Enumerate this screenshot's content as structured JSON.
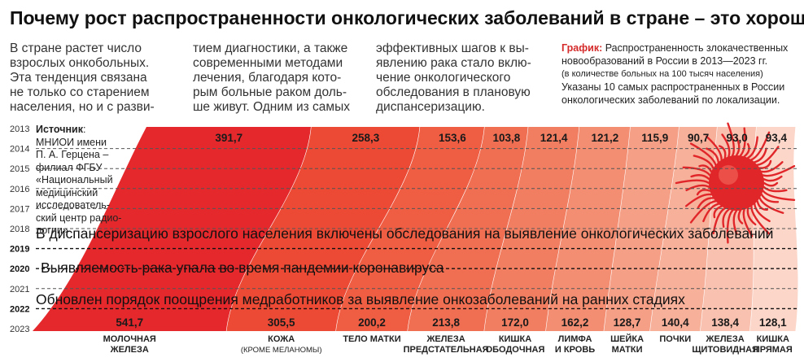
{
  "title": "Почему рост распространенности онкологических заболеваний в стране – это хорошо",
  "text_columns": [
    [
      "В стране растет число",
      "взрослых онкобольных.",
      "Эта тенденция связана",
      "не только со старением",
      "населения, но и с разви-"
    ],
    [
      "тием диагностики, а также",
      "современными методами",
      "лечения, благодаря кото-",
      "рым больные раком доль-",
      "ше живут. Одним из самых"
    ],
    [
      "эффективных шагов к вы-",
      "явлению рака стало вклю-",
      "чение онкологического",
      "обследования в плановую",
      "диспансеризацию."
    ]
  ],
  "graph_note": {
    "lead": "График:",
    "line1": " Распространенность злокачественных",
    "line2": "новообразований в России в 2013—2023 гг.",
    "line3": "(в количестве больных на 100 тысяч населения)",
    "line4": "Указаны 10 самых распространенных в России",
    "line5": "онкологических заболеваний по локализации."
  },
  "source": {
    "label": "Источник",
    "lines": [
      ":",
      "МНИОИ имени",
      "П. А. Герцена –",
      "филиал ФГБУ",
      "«Национальный",
      "медицинский",
      "исследователь-",
      "ский центр радио-",
      "логии»"
    ]
  },
  "chart_data": {
    "type": "area",
    "title": "Распространенность злокачественных новообразований в России в 2013—2023 гг.",
    "ylabel": "в количестве больных на 100 тысяч населения",
    "years": [
      "2013",
      "2014",
      "2015",
      "2016",
      "2017",
      "2018",
      "2019",
      "2020",
      "2021",
      "2022",
      "2023"
    ],
    "bold_years": [
      "2019",
      "2020",
      "2022"
    ],
    "categories": [
      {
        "name": "МОЛОЧНАЯ ЖЕЛЕЗА",
        "line1": "МОЛОЧНАЯ",
        "line2": "ЖЕЛЕЗА",
        "v2013": 391.7,
        "v2023": 541.7,
        "label2013": "391,7",
        "label2023": "541,7",
        "color": "#e5282c"
      },
      {
        "name": "КОЖА (КРОМЕ МЕЛАНОМЫ)",
        "line1": "КОЖА",
        "line2": "(КРОМЕ МЕЛАНОМЫ)",
        "v2013": 258.3,
        "v2023": 305.5,
        "label2013": "258,3",
        "label2023": "305,5",
        "color": "#ec4a35"
      },
      {
        "name": "ТЕЛО МАТКИ",
        "line1": "ТЕЛО МАТКИ",
        "line2": "",
        "v2013": 153.6,
        "v2023": 200.2,
        "label2013": "153,6",
        "label2023": "200,2",
        "color": "#ef5d43"
      },
      {
        "name": "ЖЕЛЕЗА ПРЕДСТАТЕЛЬНАЯ",
        "line1": "ЖЕЛЕЗА",
        "line2": "ПРЕДСТАТЕЛЬНАЯ",
        "v2013": 103.8,
        "v2023": 213.8,
        "label2013": "103,8",
        "label2023": "213,8",
        "color": "#f06e52"
      },
      {
        "name": "КИШКА ОБОДОЧНАЯ",
        "line1": "КИШКА",
        "line2": "ОБОДОЧНАЯ",
        "v2013": 121.4,
        "v2023": 172.0,
        "label2013": "121,4",
        "label2023": "172,0",
        "color": "#f27e61"
      },
      {
        "name": "ЛИМФА И КРОВЬ",
        "line1": "ЛИМФА",
        "line2": "И КРОВЬ",
        "v2013": 121.2,
        "v2023": 162.2,
        "label2013": "121,2",
        "label2023": "162,2",
        "color": "#f48e73"
      },
      {
        "name": "ШЕЙКА МАТКИ",
        "line1": "ШЕЙКА",
        "line2": "МАТКИ",
        "v2013": 115.9,
        "v2023": 128.7,
        "label2013": "115,9",
        "label2023": "128,7",
        "color": "#f59f86"
      },
      {
        "name": "ПОЧКИ",
        "line1": "ПОЧКИ",
        "line2": "",
        "v2013": 90.7,
        "v2023": 140.4,
        "label2013": "90,7",
        "label2023": "140,4",
        "color": "#f7b09a"
      },
      {
        "name": "ЖЕЛЕЗА ЩИТОВИДНАЯ",
        "line1": "ЖЕЛЕЗА",
        "line2": "ЩИТОВИДНАЯ",
        "v2013": 93.0,
        "v2023": 138.4,
        "label2013": "93,0",
        "label2023": "138,4",
        "color": "#f9c2b0"
      },
      {
        "name": "КИШКА ПРЯМАЯ",
        "line1": "КИШКА",
        "line2": "ПРЯМАЯ",
        "v2013": 93.4,
        "v2023": 128.1,
        "label2013": "93,4",
        "label2023": "128,1",
        "color": "#fbd6c9"
      }
    ],
    "events": [
      {
        "year": "2018",
        "text": "В диспансеризацию взрослого населения включены обследования на выявление онкологических заболеваний"
      },
      {
        "year": "2020",
        "text": "Выявляемость рака упала во время пандемии коронавируса"
      },
      {
        "year": "2022",
        "text": "Обновлен порядок поощрения медработников за выявление онкозаболеваний на ранних стадиях"
      }
    ]
  },
  "colors": {
    "accent": "#d42a2a",
    "virus": "#e1262a"
  },
  "decor": {
    "virus_icon": "cancer-cell-icon"
  }
}
